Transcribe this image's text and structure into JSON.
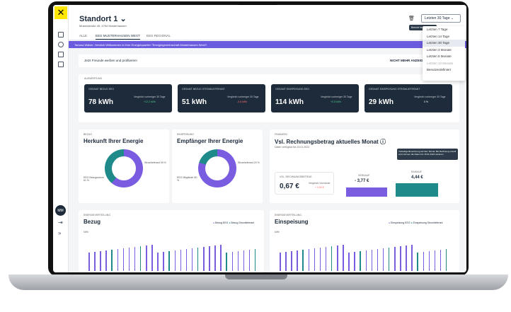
{
  "app": {
    "logo_glyph": "✕",
    "location_title": "Standort 1",
    "address": "Musterstraße 45, 4794 Musterhausen"
  },
  "toolbar": {
    "icons": [
      "trash-icon",
      "copy-icon",
      "plus-icon"
    ],
    "icons_text": "🗑 ⧉ +",
    "tooltip": "Bericht herunterladen",
    "period_selected": "Letzten 30 Tage"
  },
  "period_options": [
    "Letzten 7 Tage",
    "Letzten 14 Tage",
    "Letzten 30 Tage",
    "Letzten 3 Monate",
    "Letzten 6 Monate",
    "Letzten 12 Monate",
    "Benutzerdefiniert"
  ],
  "tabs": [
    "ALLE",
    "EEG MUSTERHAUSEN WEST",
    "EEG REGIONAL"
  ],
  "banner": {
    "text": "Tamara Walker, Herzlich Willkommen in Ihrer Energiequartier \"Energiegemeinschaft Musterhausen West\"!",
    "close": "×"
  },
  "invite": {
    "text": "Jetzt Freunde werben und profitieren!",
    "dismiss": "NICHT MEHR ANZEIGEN"
  },
  "overview": {
    "heading": "AUSWERTUNG",
    "kpis": [
      {
        "label": "GESAMT BEZUG EEG",
        "value": "78 kWh",
        "compare": "Vergleich vorheriger 30 Tage",
        "delta": "+12,2 kWh"
      },
      {
        "label": "GESAMT BEZUG STROMLIEFERANT",
        "value": "51 kWh",
        "compare": "Vergleich vorheriger 30 Tage",
        "delta": "-0,6 kWh"
      },
      {
        "label": "GESAMT EINSPEISUNG EEG",
        "value": "114 kWh",
        "compare": "Vergleich vorheriger 30 Tage",
        "delta": "+0,5 kWh"
      },
      {
        "label": "GESAMT EINSPEISUNG STROMLIEFERANT",
        "value": "29 kWh",
        "compare": "Vergleich vorheriger 30 Tage",
        "delta": "0 %"
      }
    ]
  },
  "bezug_card": {
    "caption": "BEZUG",
    "title": "Herkunft Ihrer Energie",
    "right_label": "Stromlieferant 39 %",
    "left_label": "EEG Bezugsstrom 61 %",
    "eeg_share": 61
  },
  "einspeisung_card": {
    "caption": "EINSPEISUNG",
    "title": "Empfänger Ihrer Energie",
    "right_label": "Stromlieferant 20 %",
    "left_label": "EEG Mitglieder 80 %",
    "eeg_share": 80
  },
  "finance_card": {
    "caption": "FINANZEN",
    "title": "Vsl. Rechnungsbetrag aktuelles Monat",
    "subtitle": "Daten verfügbar bis 15.01.2024",
    "tooltip": "Vorläufige Berechnung auf dem Monat. Bis Rechnung erstellt wird, können die Daten bis 15.01.2024 variieren",
    "box_label": "VSL. RECHNUNGSBETRAG",
    "box_value": "0,67 €",
    "box_compare": "Vergleich Vormonat",
    "box_delta": "+ 0,50 €",
    "verkauf_label": "VERKAUF",
    "verkauf_value": "- 3,77 €",
    "einkauf_label": "EINKAUF",
    "einkauf_value": "4,44 €"
  },
  "dist_bezug": {
    "caption": "ENERGIEVERTEILUNG",
    "title": "Bezug",
    "legend": [
      "Bezug EEG",
      "Bezug Stromlieferant"
    ],
    "unit": "kWh"
  },
  "dist_einspeisung": {
    "caption": "ENERGIEVERTEILUNG",
    "title": "Einspeisung",
    "legend": [
      "Einspeisung EEG",
      "Einspeisung Stromlieferant"
    ],
    "unit": "kWh"
  },
  "user": {
    "initials": "MM"
  },
  "colors": {
    "accent": "#6b5bde",
    "navy": "#1e2b3a",
    "teal": "#1f8a8a",
    "purple": "#7a5ce0",
    "brand_yellow": "#ffe600"
  }
}
